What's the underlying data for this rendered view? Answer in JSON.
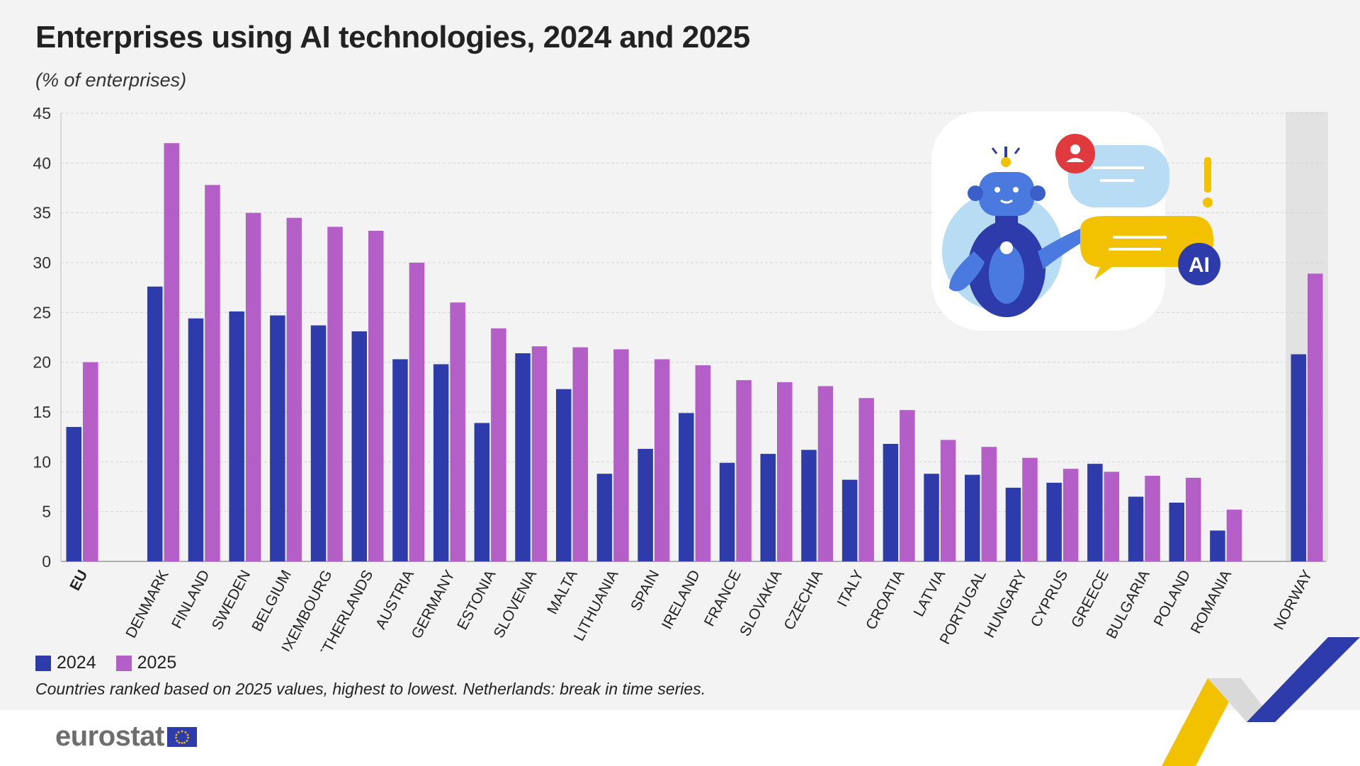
{
  "title": "Enterprises using AI technologies, 2024 and 2025",
  "subtitle": "(% of enterprises)",
  "note": "Countries ranked based on 2025 values, highest to lowest. Netherlands: break in time series.",
  "logo": {
    "text": "eurostat"
  },
  "illustration": {
    "badge_text": "AI"
  },
  "chart_data": {
    "type": "bar",
    "categories": [
      "EU",
      "DENMARK",
      "FINLAND",
      "SWEDEN",
      "BELGIUM",
      "LUXEMBOURG",
      "NETHERLANDS",
      "AUSTRIA",
      "GERMANY",
      "ESTONIA",
      "SLOVENIA",
      "MALTA",
      "LITHUANIA",
      "SPAIN",
      "IRELAND",
      "FRANCE",
      "SLOVAKIA",
      "CZECHIA",
      "ITALY",
      "CROATIA",
      "LATVIA",
      "PORTUGAL",
      "HUNGARY",
      "CYPRUS",
      "GREECE",
      "BULGARIA",
      "POLAND",
      "ROMANIA",
      "NORWAY"
    ],
    "series": [
      {
        "name": "2024",
        "color": "#2e3bab",
        "values": [
          13.5,
          27.6,
          24.4,
          25.1,
          24.7,
          23.7,
          23.1,
          20.3,
          19.8,
          13.9,
          20.9,
          17.3,
          8.8,
          11.3,
          14.9,
          9.9,
          10.8,
          11.2,
          8.2,
          11.8,
          8.8,
          8.7,
          7.4,
          7.9,
          9.8,
          6.5,
          5.9,
          3.1,
          20.8
        ]
      },
      {
        "name": "2025",
        "color": "#b45ec8",
        "values": [
          20.0,
          42.0,
          37.8,
          35.0,
          34.5,
          33.6,
          33.2,
          30.0,
          26.0,
          23.4,
          21.6,
          21.5,
          21.3,
          20.3,
          19.7,
          18.2,
          18.0,
          17.6,
          16.4,
          15.2,
          12.2,
          11.5,
          10.4,
          9.3,
          9.0,
          8.6,
          8.4,
          5.2,
          28.9
        ]
      }
    ],
    "ylim": [
      0,
      45
    ],
    "yticks": [
      0,
      5,
      10,
      15,
      20,
      25,
      30,
      35,
      40,
      45
    ],
    "grid": true,
    "legend": "bottom-left",
    "highlight_categories": [
      "NORWAY"
    ]
  }
}
